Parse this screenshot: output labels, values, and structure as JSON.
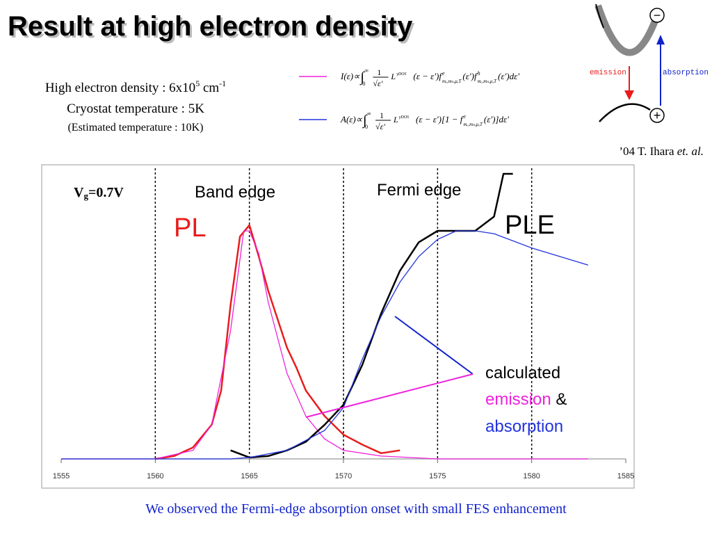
{
  "title": "Result at high electron density",
  "info": {
    "density": {
      "text": "High electron density : 6x10",
      "sup1": "5",
      "unit": " cm",
      "sup2": "-1"
    },
    "cryostat": "Cryostat temperature : 5K",
    "estimated": "(Estimated temperature : 10K)"
  },
  "formulas": [
    {
      "lhs": "I(ε)∝",
      "integral": "∫",
      "lower": "0",
      "upper": "∞",
      "num": "1",
      "den": "√ε'",
      "kernel": "L",
      "kernel_sup": "γDOS",
      "body": "(ε − ε')f",
      "f_sup": "e",
      "f_sub": "mₑ,mₕ,μ,T",
      "body2": "(ε')f",
      "f2_sup": "h",
      "f2_sub": "mₑ,mₕ,μ,T",
      "tail": "(ε')dε'"
    },
    {
      "lhs": "A(ε)∝",
      "integral": "∫",
      "lower": "0",
      "upper": "∞",
      "num": "1",
      "den": "√ε'",
      "kernel": "L",
      "kernel_sup": "γDOS",
      "body": "(ε − ε')[1 − f",
      "f_sup": "e",
      "f_sub": "mₑ,mₕ,μ,T",
      "tail": "(ε')]dε'"
    }
  ],
  "diagram": {
    "minus": "−",
    "plus": "+",
    "emission": "emission",
    "absorption": "absorption"
  },
  "citation": {
    "text": "’04 T. Ihara ",
    "etal": "et. al."
  },
  "caption": "We observed the Fermi-edge absorption onset with small FES enhancement",
  "chart_data": {
    "type": "line",
    "xlim": [
      1555,
      1585
    ],
    "xticks": [
      1555,
      1560,
      1565,
      1570,
      1575,
      1580,
      1585
    ],
    "ylim": [
      0,
      1
    ],
    "grid": true,
    "annotations": {
      "vg": {
        "main": "V",
        "sub": "g",
        "rest": "=0.7V"
      },
      "band_edge": "Band edge",
      "fermi_edge": "Fermi edge",
      "pl": "PL",
      "ple": "PLE",
      "calculated": "calculated",
      "emission": "emission",
      "amp": " &",
      "absorption": "absorption"
    },
    "series": [
      {
        "name": "PL",
        "color": "#e81c1c",
        "x": [
          1560,
          1561,
          1562,
          1563,
          1563.5,
          1564,
          1564.5,
          1565,
          1565.5,
          1566,
          1566.5,
          1567,
          1567.5,
          1568,
          1569,
          1570,
          1571,
          1572,
          1573
        ],
        "values": [
          0,
          0.01,
          0.04,
          0.12,
          0.24,
          0.54,
          0.78,
          0.82,
          0.71,
          0.59,
          0.49,
          0.39,
          0.32,
          0.24,
          0.15,
          0.085,
          0.05,
          0.02,
          0.03
        ]
      },
      {
        "name": "emission (calculated)",
        "color": "#ee22dd",
        "x": [
          1555,
          1560,
          1562,
          1563,
          1564,
          1564.7,
          1565,
          1565.5,
          1566,
          1567,
          1568,
          1569,
          1570,
          1572,
          1575,
          1583
        ],
        "values": [
          0,
          0,
          0.03,
          0.12,
          0.45,
          0.8,
          0.8,
          0.72,
          0.55,
          0.3,
          0.15,
          0.07,
          0.03,
          0.01,
          0,
          0
        ]
      },
      {
        "name": "PLE",
        "color": "#000000",
        "x": [
          1564,
          1565,
          1566,
          1567,
          1568,
          1569,
          1570,
          1571,
          1572,
          1573,
          1574,
          1575,
          1576,
          1577,
          1578,
          1578.5,
          1579
        ],
        "values": [
          0.03,
          0.005,
          0.01,
          0.03,
          0.06,
          0.12,
          0.19,
          0.33,
          0.51,
          0.66,
          0.76,
          0.8,
          0.8,
          0.8,
          0.85,
          1.0,
          1.0
        ]
      },
      {
        "name": "absorption (calculated)",
        "color": "#2233dd",
        "x": [
          1555,
          1564,
          1565,
          1567,
          1569,
          1570,
          1571,
          1572,
          1573,
          1574,
          1575,
          1576,
          1577,
          1578,
          1580,
          1583
        ],
        "values": [
          0,
          0,
          0.005,
          0.03,
          0.1,
          0.18,
          0.35,
          0.5,
          0.62,
          0.71,
          0.77,
          0.8,
          0.8,
          0.79,
          0.74,
          0.68
        ]
      }
    ]
  }
}
